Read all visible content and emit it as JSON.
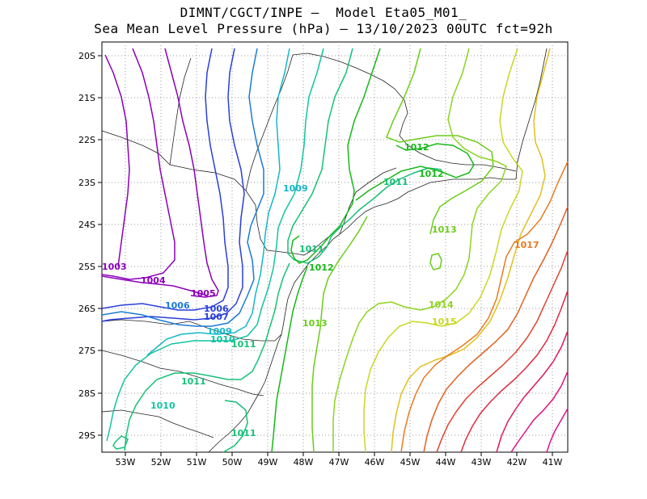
{
  "title": {
    "line1": "DIMNT/CGCT/INPE –  Model Eta05_M01_",
    "line2": "Sea Mean Level Pressure (hPa) – 13/10/2023 00UTC fct=92h"
  },
  "map": {
    "lon_labels": [
      "53W",
      "52W",
      "51W",
      "50W",
      "49W",
      "48W",
      "47W",
      "46W",
      "45W",
      "44W",
      "43W",
      "42W",
      "41W"
    ],
    "lat_labels": [
      "20S",
      "21S",
      "22S",
      "23S",
      "24S",
      "25S",
      "26S",
      "27S",
      "28S",
      "29S"
    ],
    "contour_labels": [
      {
        "text": "1003",
        "color": "#8b00b8"
      },
      {
        "text": "1004",
        "color": "#8b00b8"
      },
      {
        "text": "1005",
        "color": "#8b00b8"
      },
      {
        "text": "1006",
        "color": "#1a7ad6"
      },
      {
        "text": "1006",
        "color": "#2a3fd8"
      },
      {
        "text": "1007",
        "color": "#2a3fd8"
      },
      {
        "text": "1009",
        "color": "#14b8c8"
      },
      {
        "text": "1009",
        "color": "#14b8c8"
      },
      {
        "text": "1010",
        "color": "#12c4a0"
      },
      {
        "text": "1010",
        "color": "#12c4a0"
      },
      {
        "text": "1011",
        "color": "#16c078"
      },
      {
        "text": "1011",
        "color": "#16c078"
      },
      {
        "text": "1011",
        "color": "#16c078"
      },
      {
        "text": "1011",
        "color": "#16c078"
      },
      {
        "text": "1011",
        "color": "#16c078"
      },
      {
        "text": "1012",
        "color": "#18b818"
      },
      {
        "text": "1012",
        "color": "#18b818"
      },
      {
        "text": "1012",
        "color": "#18b818"
      },
      {
        "text": "1013",
        "color": "#6ccc18"
      },
      {
        "text": "1013",
        "color": "#6ccc18"
      },
      {
        "text": "1014",
        "color": "#8cd420"
      },
      {
        "text": "1015",
        "color": "#c8d820"
      },
      {
        "text": "1017",
        "color": "#e87a20"
      }
    ]
  }
}
